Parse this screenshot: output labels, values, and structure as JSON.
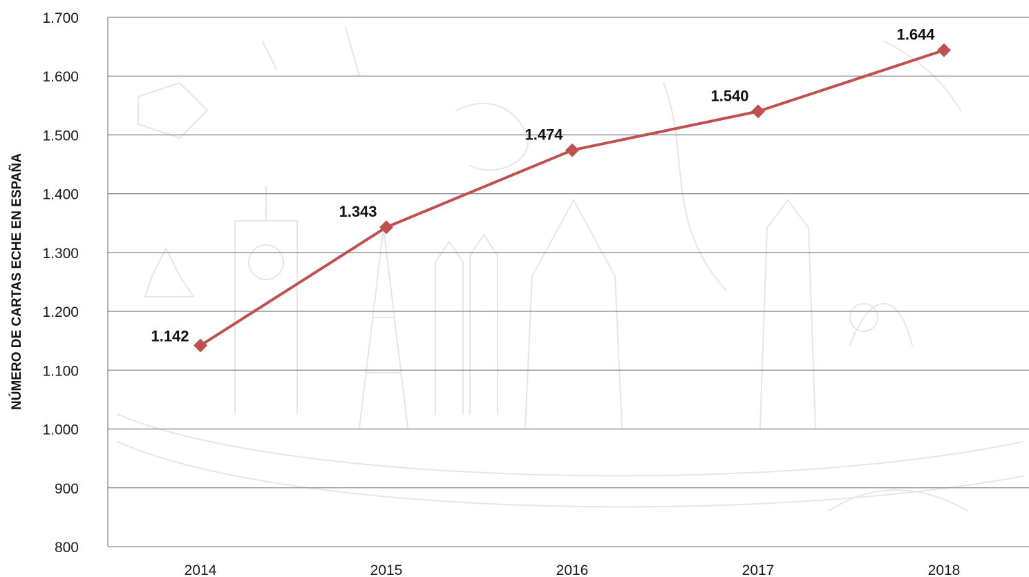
{
  "chart_data": {
    "type": "line",
    "title": "",
    "xlabel": "",
    "ylabel": "NÚMERO DE CARTAS ECHE EN ESPAÑA",
    "categories": [
      "2014",
      "2015",
      "2016",
      "2017",
      "2018"
    ],
    "series": [
      {
        "values": [
          1142,
          1343,
          1474,
          1540,
          1644
        ],
        "labels": [
          "1.142",
          "1.343",
          "1.474",
          "1.540",
          "1.644"
        ],
        "color": "#c0504d",
        "marker": "diamond"
      }
    ],
    "ylim": [
      800,
      1700
    ],
    "yticks": [
      800,
      900,
      1000,
      1100,
      1200,
      1300,
      1400,
      1500,
      1600,
      1700
    ],
    "ytick_labels": [
      "800",
      "900",
      "1.000",
      "1.100",
      "1.200",
      "1.300",
      "1.400",
      "1.500",
      "1.600",
      "1.700"
    ],
    "grid": true,
    "legend": "none"
  }
}
